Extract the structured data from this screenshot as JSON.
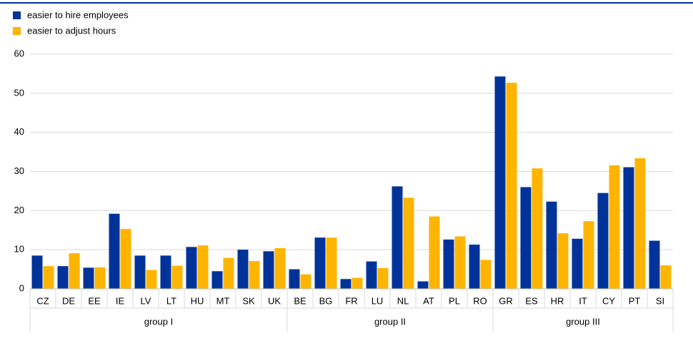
{
  "chart_data": {
    "type": "bar",
    "groups": [
      {
        "label": "group I",
        "categories": [
          "CZ",
          "DE",
          "EE",
          "IE",
          "LV",
          "LT",
          "HU",
          "MT",
          "SK",
          "UK"
        ]
      },
      {
        "label": "group II",
        "categories": [
          "BE",
          "BG",
          "FR",
          "LU",
          "NL",
          "AT",
          "PL",
          "RO"
        ]
      },
      {
        "label": "group III",
        "categories": [
          "GR",
          "ES",
          "HR",
          "IT",
          "CY",
          "PT",
          "SI"
        ]
      }
    ],
    "series": [
      {
        "name": "easier to hire employees",
        "color": "#003399",
        "values": [
          8.5,
          5.8,
          5.4,
          19.2,
          8.5,
          8.5,
          10.7,
          4.5,
          10.0,
          9.6,
          5.0,
          13.1,
          2.5,
          7.0,
          26.2,
          1.9,
          12.6,
          11.3,
          54.3,
          26.0,
          22.3,
          12.8,
          24.5,
          31.1,
          12.3
        ]
      },
      {
        "name": "easier to adjust hours",
        "color": "#ffb400",
        "values": [
          5.8,
          9.1,
          5.5,
          15.3,
          4.8,
          5.9,
          11.1,
          7.9,
          7.1,
          10.4,
          3.7,
          13.1,
          2.8,
          5.3,
          23.3,
          18.5,
          13.4,
          7.4,
          52.7,
          30.8,
          14.2,
          17.3,
          31.6,
          33.4,
          6.0
        ]
      }
    ],
    "ylim": [
      0,
      60
    ],
    "yticks": [
      0,
      10,
      20,
      30,
      40,
      50,
      60
    ],
    "grid": true
  }
}
